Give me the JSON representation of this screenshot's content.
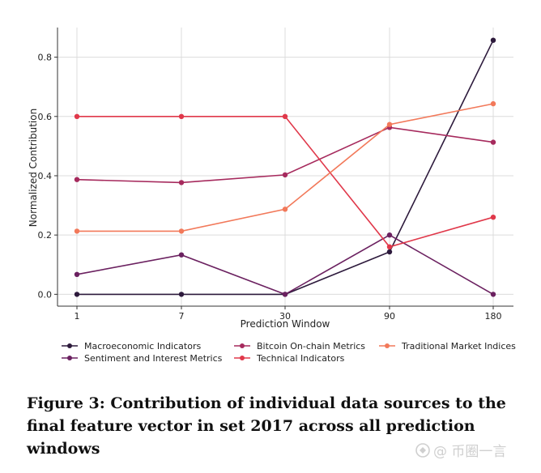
{
  "chart_data": {
    "type": "line",
    "xlabel": "Prediction Window",
    "ylabel": "Normalized Contribution",
    "categories": [
      "1",
      "7",
      "30",
      "90",
      "180"
    ],
    "yticks": [
      "0.0",
      "0.2",
      "0.4",
      "0.6",
      "0.8"
    ],
    "ylim": [
      -0.04,
      0.9
    ],
    "grid": true,
    "legend_position": "bottom",
    "series": [
      {
        "name": "Macroeconomic Indicators",
        "color": "#2d1a3c",
        "values": [
          0.0,
          0.0,
          0.0,
          0.143,
          0.857
        ]
      },
      {
        "name": "Sentiment and Interest Metrics",
        "color": "#6b2160",
        "values": [
          0.067,
          0.133,
          0.0,
          0.2,
          0.0
        ]
      },
      {
        "name": "Bitcoin On-chain Metrics",
        "color": "#a62a5d",
        "values": [
          0.387,
          0.377,
          0.403,
          0.563,
          0.513
        ]
      },
      {
        "name": "Technical Indicators",
        "color": "#e0384a",
        "values": [
          0.6,
          0.6,
          0.6,
          0.16,
          0.26
        ]
      },
      {
        "name": "Traditional Market Indices",
        "color": "#f2795a",
        "values": [
          0.213,
          0.213,
          0.287,
          0.573,
          0.643
        ]
      }
    ]
  },
  "caption": "Figure 3: Contribution of individual data sources to the final feature vector in set 2017 across all prediction windows",
  "watermark": {
    "icon": "account-logo-icon",
    "text": "@ 币圈一言"
  }
}
